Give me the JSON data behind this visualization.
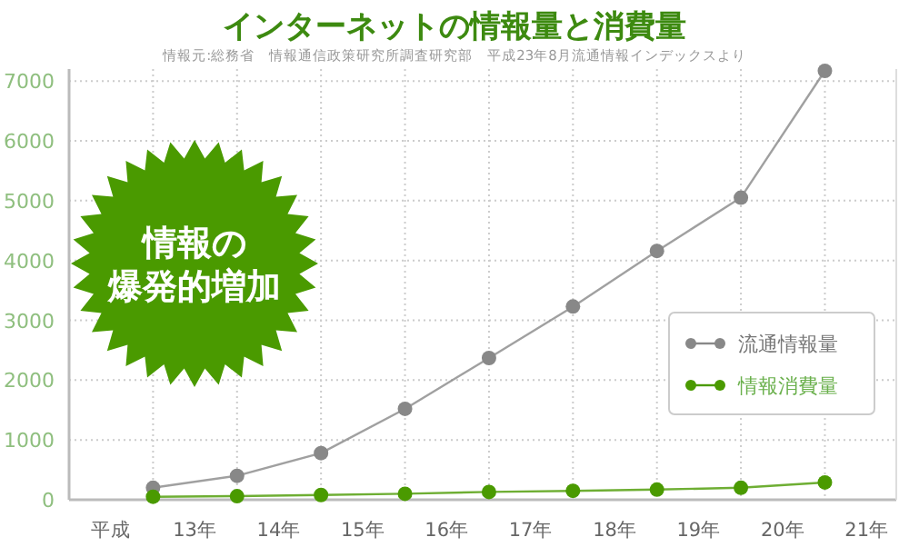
{
  "chart_data": {
    "type": "line",
    "title": "インターネットの情報量と消費量",
    "subtitle": "情報元:総務省　情報通信政策研究所調査研究部　平成23年8月流通情報インデックスより",
    "annotations": [
      "情報の",
      "爆発的増加"
    ],
    "x": [
      12.5,
      13.5,
      14.5,
      15.5,
      16.5,
      17.5,
      18.5,
      19.5,
      20.5
    ],
    "series": [
      {
        "name": "流通情報量",
        "color": "#888888",
        "values": [
          200,
          400,
          780,
          1520,
          2370,
          3230,
          4160,
          5050,
          7170
        ]
      },
      {
        "name": "情報消費量",
        "color": "#4a9a00",
        "values": [
          50,
          60,
          80,
          100,
          130,
          150,
          170,
          200,
          290
        ]
      }
    ],
    "xlim": [
      11.5,
      21.35
    ],
    "xticks": [
      {
        "value": 12,
        "label": "平成"
      },
      {
        "value": 13,
        "label": "13年"
      },
      {
        "value": 14,
        "label": "14年"
      },
      {
        "value": 15,
        "label": "15年"
      },
      {
        "value": 16,
        "label": "16年"
      },
      {
        "value": 17,
        "label": "17年"
      },
      {
        "value": 18,
        "label": "18年"
      },
      {
        "value": 19,
        "label": "19年"
      },
      {
        "value": 20,
        "label": "20年"
      },
      {
        "value": 21,
        "label": "21年"
      },
      {
        "value": 12.5,
        "label": null
      },
      {
        "value": 13.5,
        "label": null
      },
      {
        "value": 14.5,
        "label": null
      },
      {
        "value": 15.5,
        "label": null
      },
      {
        "value": 16.5,
        "label": null
      },
      {
        "value": 17.5,
        "label": null
      },
      {
        "value": 18.5,
        "label": null
      },
      {
        "value": 19.5,
        "label": null
      },
      {
        "value": 20.5,
        "label": null
      }
    ],
    "ylim": [
      0,
      7200
    ],
    "yticks": [
      0,
      1000,
      2000,
      3000,
      4000,
      5000,
      6000,
      7000
    ],
    "grid": true,
    "legend": "bottom right",
    "marker": "circle",
    "line_style": "solid"
  }
}
